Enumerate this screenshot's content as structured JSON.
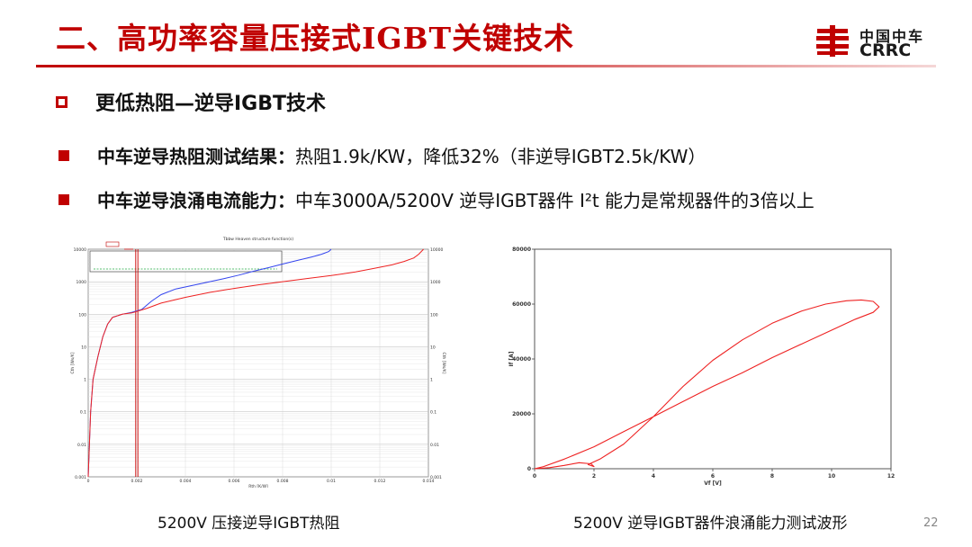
{
  "title": "二、高功率容量压接式IGBT关键技术",
  "logo": {
    "cn": "中国中车",
    "en": "CRRC"
  },
  "heading": "更低热阻—逆导IGBT技术",
  "bullets": [
    {
      "label": "中车逆导热阻测试结果：",
      "text": "热阻1.9k/KW，降低32%（非逆导IGBT2.5k/KW）"
    },
    {
      "label": "中车逆导浪涌电流能力：",
      "text": "中车3000A/5200V 逆导IGBT器件 I²t 能力是常规器件的3倍以上"
    }
  ],
  "captions": {
    "left": "5200V 压接逆导IGBT热阻",
    "right": "5200V 逆导IGBT器件浪涌能力测试波形"
  },
  "page_number": "22",
  "colors": {
    "accent": "#c00000",
    "blue_series": "#3344ee",
    "red_series": "#ee2222"
  },
  "chart_data": [
    {
      "type": "line",
      "title": "Tbbw Heaven structure function(s)",
      "xlabel": "Rth [K/W]",
      "ylabel": "Cth [Ws/K]",
      "ylabel_right": "Cth [Ws/K]",
      "xlim": [
        0,
        0.014
      ],
      "ylim": [
        0.001,
        10000
      ],
      "y_scale": "log",
      "x_ticks": [
        "0",
        "0.002",
        "0.004",
        "0.006",
        "0.008",
        "0.01",
        "0.012",
        "0.014"
      ],
      "y_ticks": [
        "0.001",
        "0.01",
        "0.1",
        "1",
        "10",
        "100",
        "1000",
        "10000"
      ],
      "marker_x": 0.002,
      "series": [
        {
          "color": "#3344ee",
          "x": [
            0,
            0.0001,
            0.0002,
            0.0004,
            0.0006,
            0.0008,
            0.001,
            0.0014,
            0.0018,
            0.0022,
            0.0026,
            0.003,
            0.0036,
            0.0044,
            0.005,
            0.0056,
            0.0062,
            0.0068,
            0.0074,
            0.008,
            0.0086,
            0.0092,
            0.0096,
            0.0099,
            0.01
          ],
          "y": [
            0.001,
            0.1,
            1,
            5,
            20,
            50,
            80,
            100,
            115,
            140,
            250,
            400,
            600,
            800,
            1000,
            1250,
            1600,
            2100,
            2700,
            3500,
            4500,
            5800,
            7000,
            8500,
            10000
          ]
        },
        {
          "color": "#ee2222",
          "x": [
            0,
            0.0001,
            0.0002,
            0.0004,
            0.0006,
            0.0008,
            0.001,
            0.0014,
            0.0018,
            0.0024,
            0.003,
            0.004,
            0.005,
            0.006,
            0.007,
            0.008,
            0.009,
            0.01,
            0.011,
            0.0118,
            0.0125,
            0.013,
            0.0134,
            0.0136,
            0.0138
          ],
          "y": [
            0.001,
            0.1,
            1,
            5,
            20,
            50,
            80,
            100,
            110,
            150,
            220,
            330,
            470,
            620,
            800,
            1000,
            1250,
            1550,
            2000,
            2600,
            3300,
            4200,
            5400,
            7000,
            10000
          ]
        }
      ]
    },
    {
      "type": "line",
      "xlabel": "Vf [V]",
      "ylabel": "If [A]",
      "xlim": [
        0,
        12
      ],
      "ylim": [
        0,
        80000
      ],
      "x_ticks": [
        "0",
        "2",
        "4",
        "6",
        "8",
        "10",
        "12"
      ],
      "y_ticks": [
        "0",
        "20000",
        "40000",
        "60000",
        "80000"
      ],
      "series": [
        {
          "color": "#ee2222",
          "x": [
            0,
            0.5,
            1.0,
            1.5,
            1.9,
            2.0,
            1.8,
            2.2,
            3.0,
            4.0,
            5.0,
            6.0,
            7.0,
            8.0,
            9.0,
            9.8,
            10.5,
            11.0,
            11.4,
            11.6,
            11.4,
            10.8,
            10.0,
            9.0,
            8.0,
            7.0,
            6.0,
            5.0,
            4.0,
            3.0,
            2.0,
            1.0,
            0.3,
            0
          ],
          "y": [
            0,
            400,
            1200,
            2200,
            1800,
            800,
            1500,
            3500,
            9000,
            19000,
            30000,
            39500,
            47000,
            53000,
            57500,
            60000,
            61200,
            61500,
            61000,
            59000,
            57000,
            54500,
            50500,
            45500,
            40500,
            35000,
            30000,
            24500,
            19000,
            13500,
            8000,
            3500,
            800,
            0
          ]
        }
      ]
    }
  ]
}
